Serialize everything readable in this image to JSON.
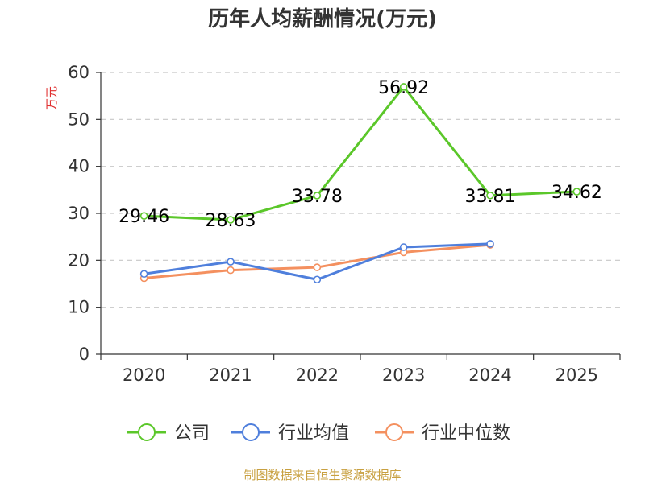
{
  "chart_data": {
    "type": "line",
    "title": "历年人均薪酬情况(万元)",
    "ylabel": "万元",
    "categories": [
      "2020",
      "2021",
      "2022",
      "2023",
      "2024",
      "2025"
    ],
    "ylim": [
      0,
      60
    ],
    "yticks": [
      "0",
      "10",
      "20",
      "30",
      "40",
      "50",
      "60"
    ],
    "grid": true,
    "legend_position": "bottom",
    "series": [
      {
        "name": "公司",
        "color": "#5bc72a",
        "values": [
          29.46,
          28.63,
          33.78,
          56.92,
          33.81,
          34.62
        ],
        "labels": [
          "29.46",
          "28.63",
          "33.78",
          "56.92",
          "33.81",
          "34.62"
        ]
      },
      {
        "name": "行业均值",
        "color": "#4f7fdc",
        "values": [
          17.1,
          19.7,
          15.9,
          22.8,
          23.5,
          null
        ]
      },
      {
        "name": "行业中位数",
        "color": "#f4905f",
        "values": [
          16.2,
          17.9,
          18.5,
          21.7,
          23.3,
          null
        ]
      }
    ],
    "ylabel_color": "#e03030"
  },
  "source": {
    "text": "制图数据来自恒生聚源数据库",
    "color": "#c8a040"
  }
}
